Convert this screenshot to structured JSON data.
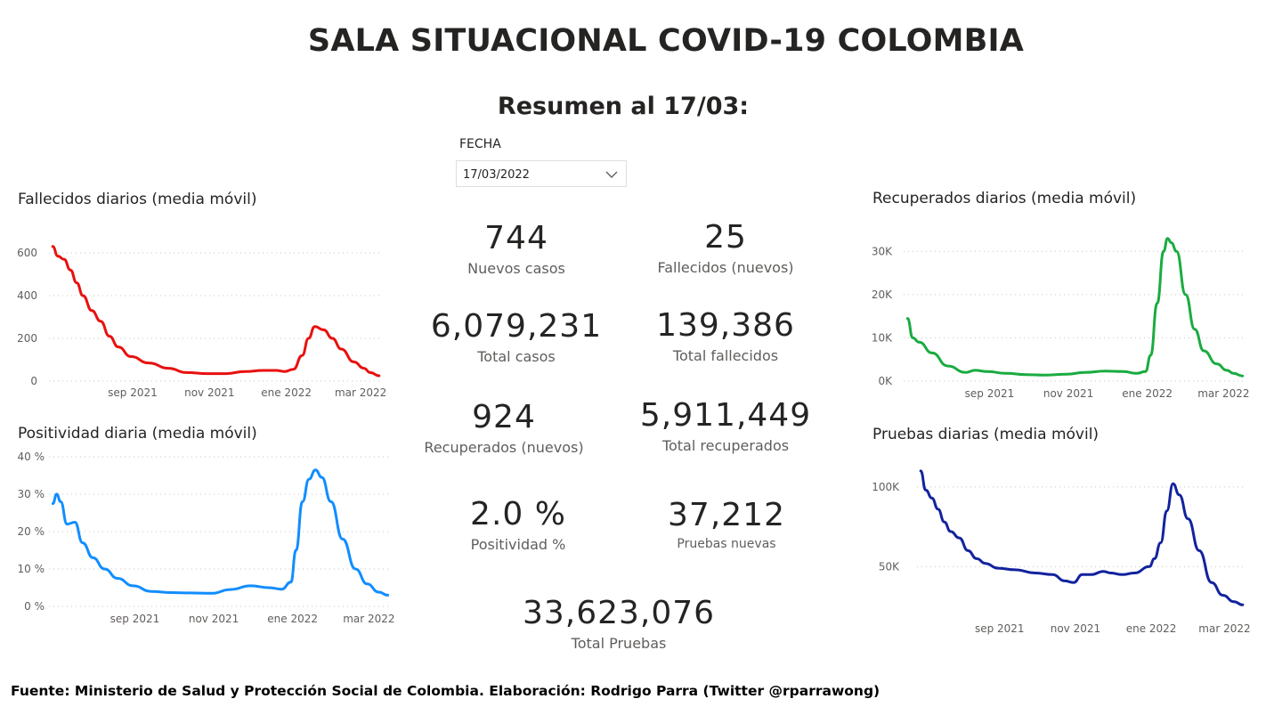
{
  "header": {
    "title": "SALA SITUACIONAL COVID-19 COLOMBIA",
    "subtitle": "Resumen al 17/03:"
  },
  "filter": {
    "label": "FECHA",
    "value": "17/03/2022",
    "icon": "chevron-down-icon"
  },
  "kpis": [
    {
      "value": "744",
      "label": "Nuevos casos"
    },
    {
      "value": "25",
      "label": "Fallecidos (nuevos)"
    },
    {
      "value": "6,079,231",
      "label": "Total casos"
    },
    {
      "value": "139,386",
      "label": "Total fallecidos"
    },
    {
      "value": "924",
      "label": "Recuperados (nuevos)"
    },
    {
      "value": "5,911,449",
      "label": "Total recuperados"
    },
    {
      "value": "2.0 %",
      "label": "Positividad %"
    },
    {
      "value": "37,212",
      "label": "Pruebas nuevas"
    },
    {
      "value": "33,623,076",
      "label": "Total Pruebas"
    }
  ],
  "footer": "Fuente: Ministerio de Salud y Protección Social de Colombia. Elaboración: Rodrigo Parra (Twitter @rparrawong)",
  "chart_data": [
    {
      "id": "fallecidos",
      "type": "line",
      "title": "Fallecidos diarios (media móvil)",
      "color": "#e8110f",
      "x_ticks": [
        "sep 2021",
        "nov 2021",
        "ene 2022",
        "mar 2022"
      ],
      "y_ticks": [
        "0",
        "200",
        "400",
        "600"
      ],
      "ylim": [
        0,
        700
      ],
      "grid": true,
      "x": [
        "2021-07-01",
        "2021-07-05",
        "2021-07-10",
        "2021-07-15",
        "2021-07-20",
        "2021-07-25",
        "2021-08-01",
        "2021-08-08",
        "2021-08-15",
        "2021-08-22",
        "2021-09-01",
        "2021-09-15",
        "2021-10-01",
        "2021-10-15",
        "2021-11-01",
        "2021-11-15",
        "2021-12-01",
        "2021-12-15",
        "2021-12-25",
        "2022-01-01",
        "2022-01-08",
        "2022-01-15",
        "2022-01-20",
        "2022-01-25",
        "2022-02-01",
        "2022-02-08",
        "2022-02-15",
        "2022-02-25",
        "2022-03-05",
        "2022-03-10",
        "2022-03-17"
      ],
      "values": [
        630,
        585,
        570,
        520,
        460,
        400,
        330,
        280,
        210,
        160,
        115,
        85,
        60,
        40,
        35,
        35,
        45,
        50,
        50,
        45,
        55,
        120,
        200,
        255,
        240,
        200,
        150,
        90,
        60,
        40,
        25
      ]
    },
    {
      "id": "positividad",
      "type": "line",
      "title": "Positividad diaria (media móvil)",
      "color": "#118dff",
      "x_ticks": [
        "sep 2021",
        "nov 2021",
        "ene 2022",
        "mar 2022"
      ],
      "y_ticks": [
        "0 %",
        "10 %",
        "20 %",
        "30 %",
        "40 %"
      ],
      "ylim": [
        0,
        40
      ],
      "grid": true,
      "x": [
        "2021-07-01",
        "2021-07-04",
        "2021-07-07",
        "2021-07-12",
        "2021-07-18",
        "2021-07-24",
        "2021-08-01",
        "2021-08-10",
        "2021-08-20",
        "2021-09-01",
        "2021-09-15",
        "2021-10-01",
        "2021-10-15",
        "2021-11-01",
        "2021-11-15",
        "2021-12-01",
        "2021-12-15",
        "2021-12-25",
        "2022-01-01",
        "2022-01-05",
        "2022-01-10",
        "2022-01-15",
        "2022-01-20",
        "2022-01-25",
        "2022-02-01",
        "2022-02-10",
        "2022-02-20",
        "2022-03-01",
        "2022-03-10",
        "2022-03-17"
      ],
      "values": [
        27.5,
        30.0,
        28.0,
        22.0,
        22.5,
        17.0,
        13.0,
        10.0,
        7.5,
        5.5,
        4.0,
        3.7,
        3.6,
        3.5,
        4.5,
        5.5,
        5.0,
        4.6,
        6.5,
        15.0,
        28.0,
        34.0,
        36.5,
        34.5,
        28.0,
        18.0,
        10.0,
        6.0,
        3.8,
        3.0
      ]
    },
    {
      "id": "recuperados",
      "type": "line",
      "title": "Recuperados diarios (media móvil)",
      "color": "#1aab40",
      "x_ticks": [
        "sep 2021",
        "nov 2021",
        "ene 2022",
        "mar 2022"
      ],
      "y_ticks": [
        "0K",
        "10K",
        "20K",
        "30K"
      ],
      "ylim": [
        0,
        35000
      ],
      "grid": true,
      "x": [
        "2021-07-01",
        "2021-07-05",
        "2021-07-10",
        "2021-07-20",
        "2021-08-01",
        "2021-08-15",
        "2021-08-22",
        "2021-09-01",
        "2021-09-15",
        "2021-10-01",
        "2021-10-15",
        "2021-11-01",
        "2021-11-15",
        "2021-12-01",
        "2021-12-15",
        "2021-12-25",
        "2022-01-01",
        "2022-01-05",
        "2022-01-10",
        "2022-01-15",
        "2022-01-18",
        "2022-01-21",
        "2022-01-25",
        "2022-02-01",
        "2022-02-08",
        "2022-02-15",
        "2022-02-25",
        "2022-03-05",
        "2022-03-10",
        "2022-03-17"
      ],
      "values": [
        14500,
        10000,
        9000,
        6500,
        3500,
        2000,
        2500,
        2200,
        1800,
        1500,
        1400,
        1600,
        2000,
        2300,
        2200,
        1800,
        2200,
        6000,
        18000,
        30000,
        33000,
        32000,
        30000,
        20000,
        12000,
        7000,
        4000,
        2500,
        1800,
        1200
      ]
    },
    {
      "id": "pruebas",
      "type": "line",
      "title": "Pruebas diarias (media móvil)",
      "color": "#12239e",
      "x_ticks": [
        "sep 2021",
        "nov 2021",
        "ene 2022",
        "mar 2022"
      ],
      "y_ticks": [
        "50K",
        "100K"
      ],
      "ylim": [
        20000,
        115000
      ],
      "grid": true,
      "x": [
        "2021-07-01",
        "2021-07-05",
        "2021-07-10",
        "2021-07-15",
        "2021-07-20",
        "2021-07-25",
        "2021-08-01",
        "2021-08-08",
        "2021-08-15",
        "2021-08-22",
        "2021-09-01",
        "2021-09-15",
        "2021-10-01",
        "2021-10-15",
        "2021-10-25",
        "2021-11-01",
        "2021-11-08",
        "2021-11-15",
        "2021-11-25",
        "2021-12-01",
        "2021-12-10",
        "2021-12-20",
        "2022-01-01",
        "2022-01-05",
        "2022-01-10",
        "2022-01-15",
        "2022-01-20",
        "2022-01-25",
        "2022-02-01",
        "2022-02-10",
        "2022-02-20",
        "2022-03-01",
        "2022-03-10",
        "2022-03-17"
      ],
      "values": [
        110000,
        98000,
        93000,
        86000,
        78000,
        72000,
        68000,
        60000,
        55000,
        52000,
        49000,
        48000,
        46000,
        45000,
        41000,
        40000,
        45000,
        45000,
        47000,
        46000,
        45000,
        46000,
        50000,
        55000,
        65000,
        85000,
        102000,
        95000,
        80000,
        60000,
        40000,
        32000,
        28000,
        26000
      ]
    }
  ]
}
